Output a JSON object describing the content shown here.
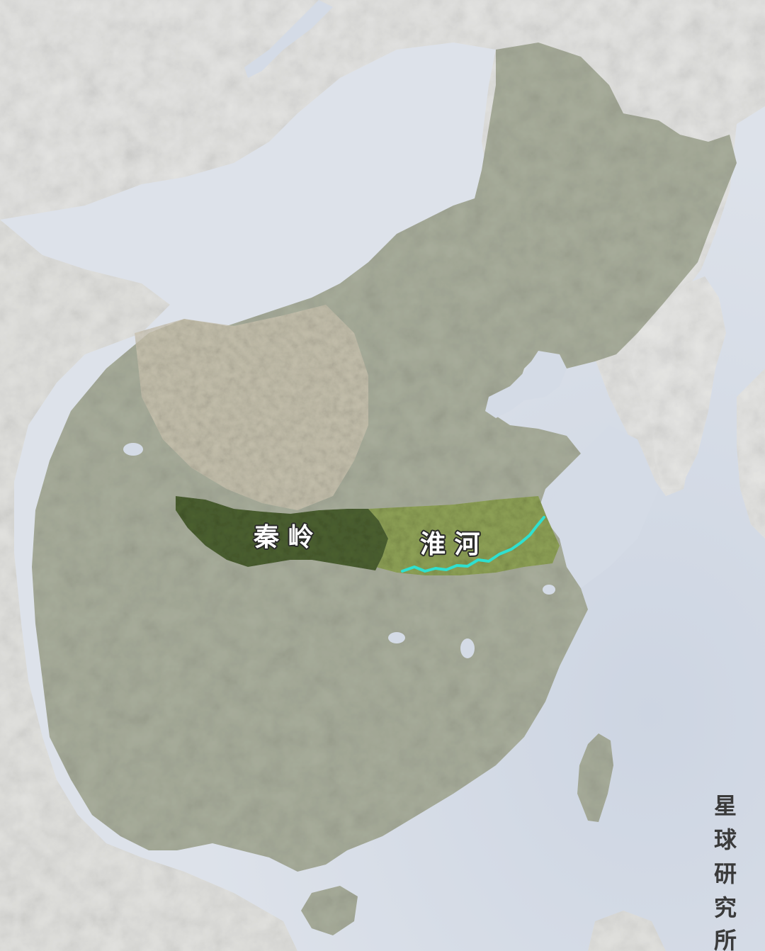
{
  "map": {
    "labels": {
      "qinling": "秦 岭",
      "huaihe": "淮 河"
    },
    "watermark": [
      "星",
      "球",
      "研",
      "究",
      "所"
    ],
    "colors": {
      "sea": "#d4dbe6",
      "land_outside": "#e3e3e1",
      "china_land": "#a9ae9c",
      "qinling_range": "#4d6233",
      "huai_basin": "#8fa257",
      "huai_river": "#2fe0d0",
      "label_fill": "#ffffff",
      "label_stroke": "#2a2a2a",
      "watermark": "#3a3a3a"
    }
  }
}
